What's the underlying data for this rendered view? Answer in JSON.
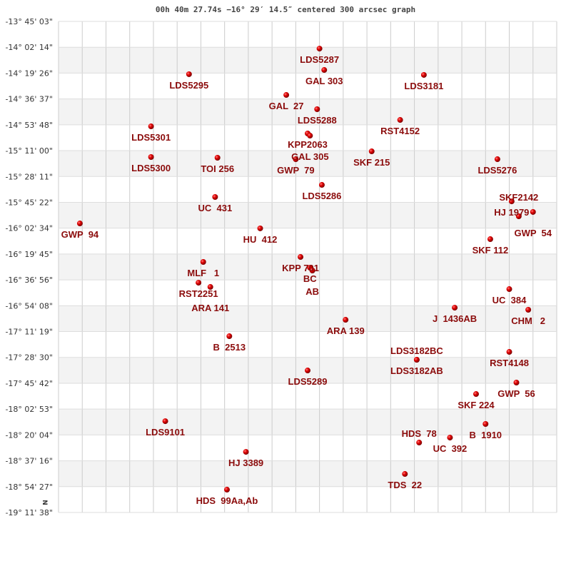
{
  "chart_data": {
    "type": "scatter",
    "title": "00h 40m 27.74s −16° 29′ 14.5″ centered 300 arcsec graph",
    "ylabel": "",
    "xlabel": "",
    "north_marker": "N",
    "grid": true,
    "grid_columns": 21,
    "ylim_deg": [
      -19.1939,
      -13.7508
    ],
    "y_ticks": [
      "-13° 45' 03\"",
      "-14° 02' 14\"",
      "-14° 19' 26\"",
      "-14° 36' 37\"",
      "-14° 53' 48\"",
      "-15° 11' 00\"",
      "-15° 28' 11\"",
      "-15° 45' 22\"",
      "-16° 02' 34\"",
      "-16° 19' 45\"",
      "-16° 36' 56\"",
      "-16° 54' 08\"",
      "-17° 11' 19\"",
      "-17° 28' 30\"",
      "-17° 45' 42\"",
      "-18° 02' 53\"",
      "-18° 20' 04\"",
      "-18° 37' 16\"",
      "-18° 54' 27\"",
      "-19° 11' 38\""
    ],
    "colors": {
      "star": "#e00000",
      "label": "#8b0b0b",
      "band": "#f3f3f3",
      "grid": "#cccccc"
    },
    "points": [
      {
        "label": "LDS5287",
        "x": 11.0,
        "dec": -14.052
      },
      {
        "label": "GAL 303",
        "x": 11.2,
        "dec": -14.289
      },
      {
        "label": "LDS5295",
        "x": 5.5,
        "dec": -14.336
      },
      {
        "label": "LDS3181",
        "x": 15.4,
        "dec": -14.344
      },
      {
        "label": "GAL  27",
        "x": 9.6,
        "dec": -14.566
      },
      {
        "label": "LDS5288",
        "x": 10.9,
        "dec": -14.724
      },
      {
        "label": "RST4152",
        "x": 14.4,
        "dec": -14.843
      },
      {
        "label": "LDS5301",
        "x": 3.9,
        "dec": -14.914
      },
      {
        "label": "KPP2063",
        "x": 10.5,
        "dec": -14.993
      },
      {
        "label": "GAL 305",
        "x": 10.6,
        "dec": -15.017
      },
      {
        "label": "SKF 215",
        "x": 13.2,
        "dec": -15.191
      },
      {
        "label": "LDS5300",
        "x": 3.9,
        "dec": -15.254
      },
      {
        "label": "TOI 256",
        "x": 6.7,
        "dec": -15.262
      },
      {
        "label": "GWP  79",
        "x": 10.0,
        "dec": -15.278
      },
      {
        "label": "LDS5276",
        "x": 18.5,
        "dec": -15.278
      },
      {
        "label": "LDS5286",
        "x": 11.1,
        "dec": -15.563
      },
      {
        "label": "UC  431",
        "x": 6.6,
        "dec": -15.697
      },
      {
        "label": "HJ 1979",
        "x": 19.1,
        "dec": -15.745
      },
      {
        "label": "GWP  54",
        "x": 20.0,
        "dec": -15.863
      },
      {
        "label": "SKF2142",
        "x": 19.4,
        "dec": -15.911
      },
      {
        "label": "GWP  94",
        "x": 0.9,
        "dec": -15.99
      },
      {
        "label": "HU  412",
        "x": 8.5,
        "dec": -16.045
      },
      {
        "label": "SKF 112",
        "x": 18.2,
        "dec": -16.164
      },
      {
        "label": "KPP 701",
        "x": 10.2,
        "dec": -16.362
      },
      {
        "label": "BC",
        "x": 10.6,
        "dec": -16.481
      },
      {
        "label": "AB",
        "x": 10.7,
        "dec": -16.512
      },
      {
        "label": "MLF   1",
        "x": 6.1,
        "dec": -16.417
      },
      {
        "label": "RST2251",
        "x": 5.9,
        "dec": -16.647
      },
      {
        "label": "ARA 141",
        "x": 6.4,
        "dec": -16.694
      },
      {
        "label": "UC  384",
        "x": 19.0,
        "dec": -16.718
      },
      {
        "label": "J  1436AB",
        "x": 16.7,
        "dec": -16.924
      },
      {
        "label": "CHM   2",
        "x": 19.8,
        "dec": -16.947
      },
      {
        "label": "ARA 139",
        "x": 12.1,
        "dec": -17.058
      },
      {
        "label": "B  2513",
        "x": 7.2,
        "dec": -17.24
      },
      {
        "label": "RST4148",
        "x": 19.0,
        "dec": -17.414
      },
      {
        "label": "LDS3182AB",
        "x": 15.1,
        "dec": -17.501
      },
      {
        "label": "LDS3182BC",
        "x": 15.1,
        "dec": -17.501
      },
      {
        "label": "LDS5289",
        "x": 10.5,
        "dec": -17.62
      },
      {
        "label": "GWP  56",
        "x": 19.3,
        "dec": -17.754
      },
      {
        "label": "SKF 224",
        "x": 17.6,
        "dec": -17.881
      },
      {
        "label": "B  1910",
        "x": 18.0,
        "dec": -18.213
      },
      {
        "label": "LDS9101",
        "x": 4.5,
        "dec": -18.182
      },
      {
        "label": "UC  392",
        "x": 16.5,
        "dec": -18.364
      },
      {
        "label": "HDS  78",
        "x": 15.2,
        "dec": -18.419
      },
      {
        "label": "HJ 3389",
        "x": 7.9,
        "dec": -18.522
      },
      {
        "label": "TDS  22",
        "x": 14.6,
        "dec": -18.767
      },
      {
        "label": "HDS  99Aa,Ab",
        "x": 7.1,
        "dec": -18.941
      }
    ]
  }
}
